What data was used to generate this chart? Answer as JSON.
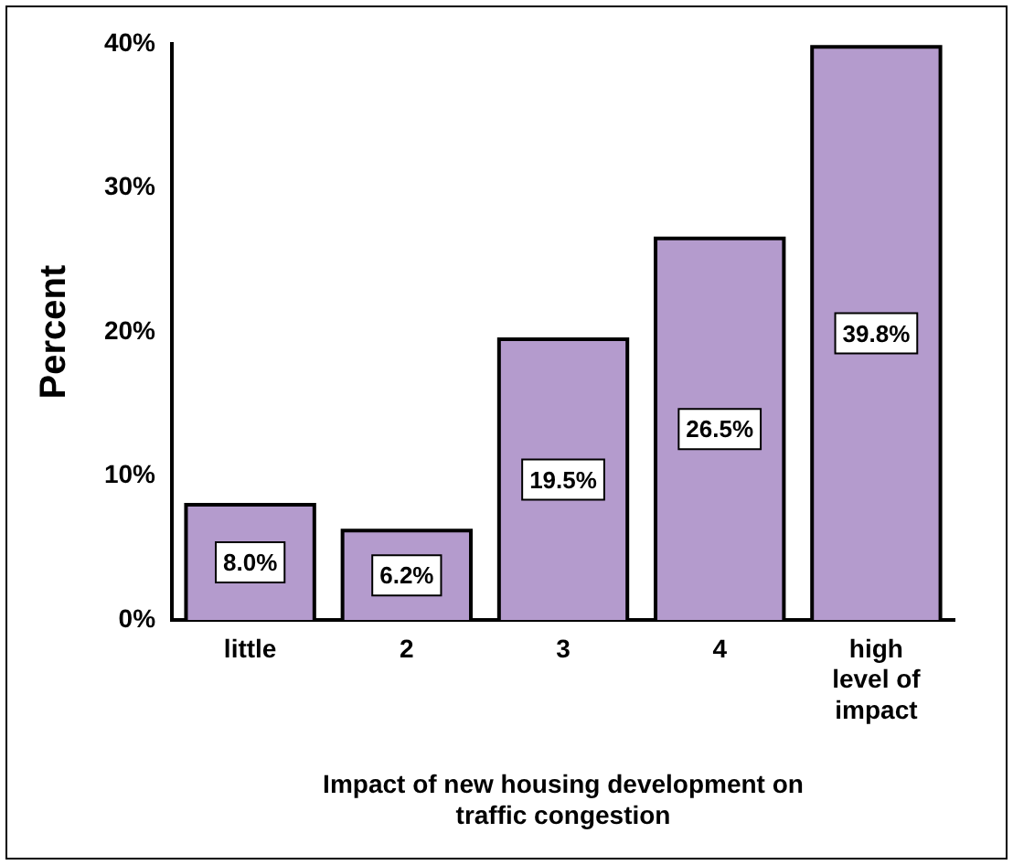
{
  "chart_data": {
    "type": "bar",
    "categories": [
      "little",
      "2",
      "3",
      "4",
      "high level of impact"
    ],
    "values": [
      8.0,
      6.2,
      19.5,
      26.5,
      39.8
    ],
    "color": "#b49bcd",
    "value_labels": [
      "8.0%",
      "6.2%",
      "19.5%",
      "26.5%",
      "39.8%"
    ],
    "ylim": [
      0,
      40
    ],
    "yticks": [
      {
        "value": 0,
        "label": "0%"
      },
      {
        "value": 10,
        "label": "10%"
      },
      {
        "value": 20,
        "label": "20%"
      },
      {
        "value": 30,
        "label": "30%"
      },
      {
        "value": 40,
        "label": "40%"
      }
    ],
    "ylabel": "Percent",
    "xlabel": "Impact of new housing development on traffic congestion",
    "grid": false,
    "legend": false
  }
}
